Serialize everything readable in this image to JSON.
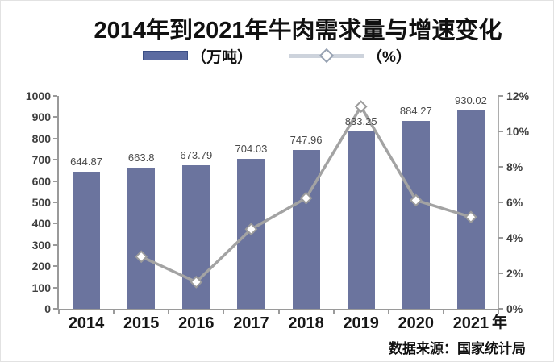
{
  "title": "2014年到2021年牛肉需求量与增速变化",
  "legend": {
    "bars_label": "（万吨）",
    "line_label": "（%）"
  },
  "source": "数据来源：国家统计局",
  "colors": {
    "bar": "#6b749e",
    "line": "#a3a3a3",
    "legend_line": "#cdd3dc",
    "marker_fill": "#ffffff",
    "marker_stroke": "#9b9b9b",
    "axis": "#9a9a9a",
    "tick_label": "#3f3f3f",
    "value_label": "#4a4a4a",
    "year_label": "#161616"
  },
  "chart_data": {
    "type": "bar",
    "title": "2014年到2021年牛肉需求量与增速变化",
    "categories": [
      "2014",
      "2015",
      "2016",
      "2017",
      "2018",
      "2019",
      "2020",
      "2021"
    ],
    "x_suffix": "年",
    "series": [
      {
        "name": "（万吨）",
        "kind": "bar",
        "axis": "left",
        "values": [
          644.87,
          663.8,
          673.79,
          704.03,
          747.96,
          833.25,
          884.27,
          930.02
        ]
      },
      {
        "name": "（%）",
        "kind": "line",
        "axis": "right",
        "values": [
          null,
          2.94,
          1.51,
          4.49,
          6.24,
          11.4,
          6.12,
          5.17
        ]
      }
    ],
    "left_axis": {
      "min": 0,
      "max": 1000,
      "step": 100
    },
    "right_axis": {
      "min": 0,
      "max": 12,
      "step": 2,
      "format": "percent"
    },
    "legend_position": "top",
    "grid": false,
    "bar_labels_visible": true
  }
}
